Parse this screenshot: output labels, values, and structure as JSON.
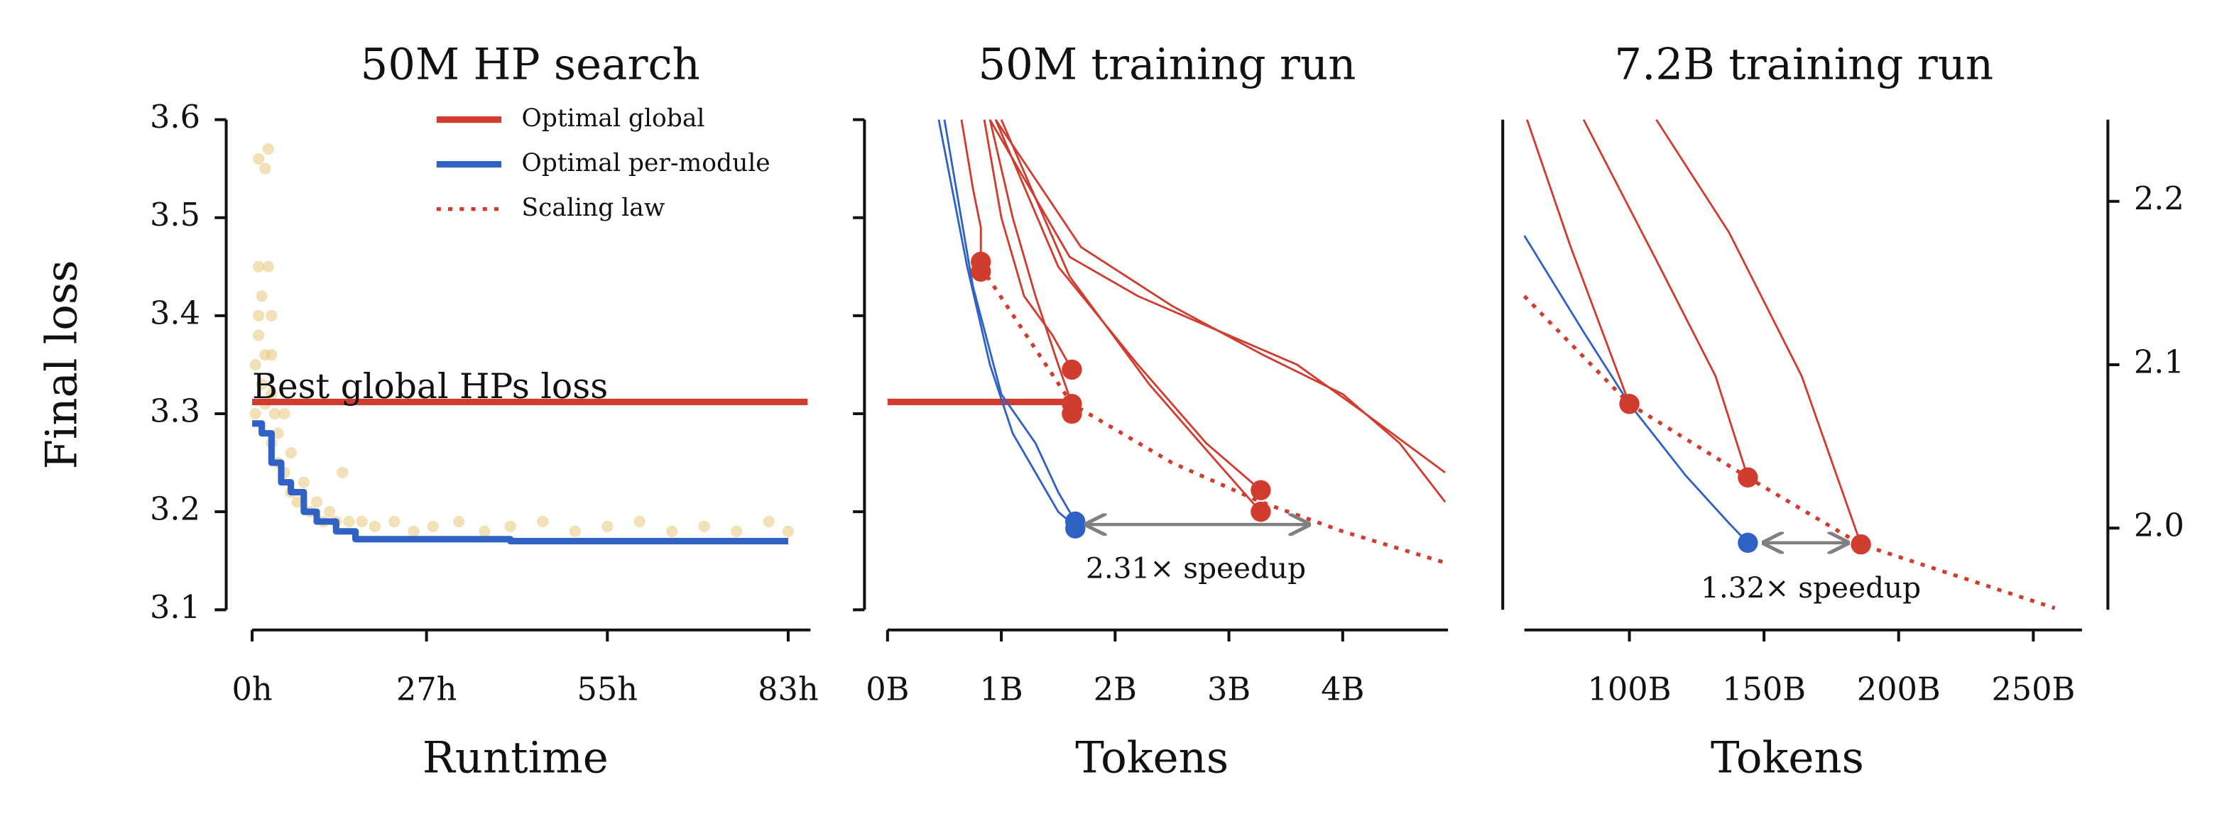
{
  "chart_data": [
    {
      "type": "line",
      "title": "50M HP search",
      "x_label": "Runtime",
      "y_label": "Final loss",
      "xlim": [
        0,
        86
      ],
      "ylim": [
        3.1,
        3.6
      ],
      "xticks": [
        {
          "value": 0,
          "label": "0h"
        },
        {
          "value": 27,
          "label": "27h"
        },
        {
          "value": 55,
          "label": "55h"
        },
        {
          "value": 83,
          "label": "83h"
        }
      ],
      "yticks": [
        3.1,
        3.2,
        3.3,
        3.4,
        3.5,
        3.6
      ],
      "y_side": "left",
      "y_tick_labels": true,
      "legend": {
        "loc": "upper right",
        "entries": [
          {
            "name": "Optimal global",
            "color": "#d03c2e",
            "style": "thick"
          },
          {
            "name": "Optimal per-module",
            "color": "#2f62c4",
            "style": "thick"
          },
          {
            "name": "Scaling law",
            "color": "#d03c2e",
            "style": "dotted"
          }
        ]
      },
      "points": [
        {
          "color": "#e8c77a",
          "x": [
            1,
            1,
            1.5,
            2,
            2,
            2.5,
            3,
            3,
            3.5,
            4,
            0.5,
            0.5,
            1,
            1.5,
            2,
            3,
            4,
            5,
            5,
            6,
            7,
            8,
            9,
            10,
            11,
            12,
            13,
            14,
            15,
            17,
            19,
            22,
            25,
            28,
            32,
            36,
            40,
            45,
            50,
            55,
            60,
            65,
            70,
            75,
            80,
            83,
            2.5,
            3,
            1,
            6
          ],
          "values": [
            3.56,
            3.38,
            3.42,
            3.55,
            3.36,
            3.57,
            3.4,
            3.32,
            3.3,
            3.28,
            3.35,
            3.3,
            3.45,
            3.33,
            3.31,
            3.27,
            3.25,
            3.24,
            3.3,
            3.22,
            3.21,
            3.23,
            3.2,
            3.21,
            3.19,
            3.2,
            3.19,
            3.24,
            3.19,
            3.19,
            3.185,
            3.19,
            3.18,
            3.185,
            3.19,
            3.18,
            3.185,
            3.19,
            3.18,
            3.185,
            3.19,
            3.18,
            3.185,
            3.18,
            3.19,
            3.18,
            3.45,
            3.36,
            3.4,
            3.26
          ]
        }
      ],
      "series": [
        {
          "color": "#d03c2e",
          "style": "thick",
          "x": [
            0,
            86
          ],
          "values": [
            3.312,
            3.312
          ]
        },
        {
          "color": "#2f62c4",
          "style": "thick",
          "x": [
            0,
            1.5,
            1.5,
            3,
            3,
            4.5,
            4.5,
            6,
            6,
            8,
            8,
            10,
            10,
            13,
            13,
            16,
            16,
            40,
            40,
            83
          ],
          "values": [
            3.29,
            3.29,
            3.28,
            3.28,
            3.25,
            3.25,
            3.23,
            3.23,
            3.22,
            3.22,
            3.2,
            3.2,
            3.19,
            3.19,
            3.18,
            3.18,
            3.172,
            3.172,
            3.17,
            3.17
          ]
        }
      ],
      "annotations": [
        {
          "text": "Best global HPs loss",
          "x": 0,
          "y": 3.325,
          "color": "#d03c2e",
          "ha": "left",
          "size": "large"
        }
      ]
    },
    {
      "type": "line",
      "title": "50M training run",
      "x_label": "Tokens",
      "xlim": [
        0,
        4.9
      ],
      "ylim": [
        3.1,
        3.6
      ],
      "xticks": [
        {
          "value": 0,
          "label": "0B"
        },
        {
          "value": 1,
          "label": "1B"
        },
        {
          "value": 2,
          "label": "2B"
        },
        {
          "value": 3,
          "label": "3B"
        },
        {
          "value": 4,
          "label": "4B"
        }
      ],
      "yticks": [
        3.1,
        3.2,
        3.3,
        3.4,
        3.5,
        3.6
      ],
      "y_side": "left",
      "y_tick_labels": false,
      "series": [
        {
          "color": "#d03c2e",
          "style": "thick",
          "x": [
            0,
            1.57
          ],
          "values": [
            3.312,
            3.312
          ]
        },
        {
          "color": "#d03c2e",
          "style": "thin",
          "x": [
            0.65,
            0.75,
            0.82,
            0.82
          ],
          "values": [
            3.6,
            3.53,
            3.49,
            3.455
          ]
        },
        {
          "color": "#d03c2e",
          "style": "thin",
          "x": [
            0.85,
            1.0,
            1.2,
            1.45,
            1.62
          ],
          "values": [
            3.6,
            3.5,
            3.42,
            3.38,
            3.345
          ]
        },
        {
          "color": "#d03c2e",
          "style": "thin",
          "x": [
            0.9,
            1.1,
            1.3,
            1.5,
            1.62
          ],
          "values": [
            3.6,
            3.5,
            3.42,
            3.35,
            3.31
          ]
        },
        {
          "color": "#d03c2e",
          "style": "thin",
          "x": [
            0.95,
            1.5,
            2.2,
            2.8,
            3.28
          ],
          "values": [
            3.6,
            3.45,
            3.35,
            3.27,
            3.222
          ]
        },
        {
          "color": "#d03c2e",
          "style": "thin",
          "x": [
            1.0,
            1.6,
            2.3,
            2.9,
            3.28
          ],
          "values": [
            3.6,
            3.44,
            3.33,
            3.25,
            3.2
          ]
        },
        {
          "color": "#d03c2e",
          "style": "thin",
          "x": [
            0.9,
            1.6,
            2.2,
            3.0,
            3.6,
            4.2,
            4.9
          ],
          "values": [
            3.6,
            3.46,
            3.42,
            3.38,
            3.35,
            3.3,
            3.24
          ]
        },
        {
          "color": "#d03c2e",
          "style": "thin",
          "x": [
            0.95,
            1.7,
            2.5,
            3.3,
            4.0,
            4.5,
            4.9
          ],
          "values": [
            3.6,
            3.47,
            3.41,
            3.36,
            3.32,
            3.27,
            3.21
          ]
        },
        {
          "color": "#2f62c4",
          "style": "thin",
          "x": [
            0.45,
            0.7,
            0.9,
            1.1,
            1.3,
            1.5,
            1.65
          ],
          "values": [
            3.6,
            3.45,
            3.35,
            3.28,
            3.24,
            3.2,
            3.185
          ]
        },
        {
          "color": "#2f62c4",
          "style": "thin",
          "x": [
            0.5,
            0.75,
            1.0,
            1.3,
            1.5,
            1.65
          ],
          "values": [
            3.6,
            3.43,
            3.32,
            3.27,
            3.22,
            3.19
          ]
        },
        {
          "color": "#d03c2e",
          "style": "dotted",
          "x": [
            0.82,
            1.62,
            2.5,
            3.28,
            4.0,
            4.9
          ],
          "values": [
            3.45,
            3.31,
            3.25,
            3.21,
            3.18,
            3.148
          ]
        }
      ],
      "points": [
        {
          "color": "#d03c2e",
          "x": [
            0.82,
            0.82,
            1.62,
            1.62,
            1.62,
            3.28,
            3.28
          ],
          "values": [
            3.455,
            3.445,
            3.345,
            3.31,
            3.3,
            3.222,
            3.2
          ]
        },
        {
          "color": "#2f62c4",
          "x": [
            1.65,
            1.65
          ],
          "values": [
            3.19,
            3.183
          ]
        }
      ],
      "arrows": [
        {
          "x": [
            1.75,
            3.7
          ],
          "y": 3.187,
          "color": "#808080"
        }
      ],
      "annotations": [
        {
          "text": "2.31× speedup",
          "x": 2.71,
          "y": 3.14,
          "color": "#222222",
          "ha": "center",
          "size": "small"
        }
      ]
    },
    {
      "type": "line",
      "title": "7.2B training run",
      "x_label": "Tokens",
      "xlim": [
        61,
        267
      ],
      "ylim": [
        1.95,
        2.25
      ],
      "xticks": [
        {
          "value": 100,
          "label": "100B"
        },
        {
          "value": 150,
          "label": "150B"
        },
        {
          "value": 200,
          "label": "200B"
        },
        {
          "value": 250,
          "label": "250B"
        }
      ],
      "yticks": [
        {
          "value": 2,
          "label": "2.0"
        },
        2.1,
        2.2
      ],
      "y_side": "right",
      "y_tick_labels": true,
      "series": [
        {
          "color": "#d03c2e",
          "style": "thin",
          "x": [
            62,
            78,
            100
          ],
          "values": [
            2.25,
            2.173,
            2.076
          ]
        },
        {
          "color": "#d03c2e",
          "style": "thin",
          "x": [
            83,
            110,
            132,
            144
          ],
          "values": [
            2.25,
            2.164,
            2.093,
            2.031
          ]
        },
        {
          "color": "#d03c2e",
          "style": "thin",
          "x": [
            110,
            137,
            164,
            186
          ],
          "values": [
            2.25,
            2.181,
            2.093,
            1.99
          ]
        },
        {
          "color": "#2f62c4",
          "style": "thin",
          "x": [
            61,
            83,
            100,
            121,
            137,
            144
          ],
          "values": [
            2.179,
            2.12,
            2.076,
            2.032,
            2.003,
            1.991
          ]
        },
        {
          "color": "#d03c2e",
          "style": "dotted",
          "x": [
            61,
            100,
            144,
            186,
            258
          ],
          "values": [
            2.142,
            2.076,
            2.031,
            1.99,
            1.951
          ]
        }
      ],
      "points": [
        {
          "color": "#d03c2e",
          "x": [
            100,
            144,
            186
          ],
          "values": [
            2.076,
            2.031,
            1.99
          ]
        },
        {
          "color": "#2f62c4",
          "x": [
            144
          ],
          "values": [
            1.991
          ]
        }
      ],
      "arrows": [
        {
          "x": [
            150,
            181
          ],
          "y": 1.991,
          "color": "#808080"
        }
      ],
      "annotations": [
        {
          "text": "1.32× speedup",
          "x": 167.4,
          "y": 1.962,
          "color": "#222222",
          "ha": "center",
          "size": "small"
        }
      ]
    }
  ]
}
